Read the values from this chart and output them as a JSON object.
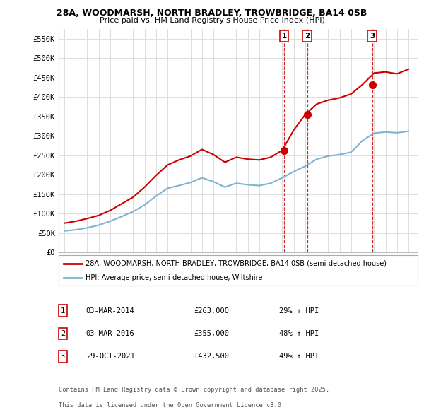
{
  "title_line1": "28A, WOODMARSH, NORTH BRADLEY, TROWBRIDGE, BA14 0SB",
  "title_line2": "Price paid vs. HM Land Registry's House Price Index (HPI)",
  "background_color": "#ffffff",
  "plot_bg_color": "#ffffff",
  "grid_color": "#dddddd",
  "ylim": [
    0,
    575000
  ],
  "yticks": [
    0,
    50000,
    100000,
    150000,
    200000,
    250000,
    300000,
    350000,
    400000,
    450000,
    500000,
    550000
  ],
  "ytick_labels": [
    "£0",
    "£50K",
    "£100K",
    "£150K",
    "£200K",
    "£250K",
    "£300K",
    "£350K",
    "£400K",
    "£450K",
    "£500K",
    "£550K"
  ],
  "sale_color": "#cc0000",
  "hpi_color": "#7fb3d3",
  "vline_color": "#cc0000",
  "purchases": [
    {
      "date_num": 2014.163,
      "price": 263000,
      "label": "1"
    },
    {
      "date_num": 2016.163,
      "price": 355000,
      "label": "2"
    },
    {
      "date_num": 2021.829,
      "price": 432500,
      "label": "3"
    }
  ],
  "legend_sale_label": "28A, WOODMARSH, NORTH BRADLEY, TROWBRIDGE, BA14 0SB (semi-detached house)",
  "legend_hpi_label": "HPI: Average price, semi-detached house, Wiltshire",
  "footer_line1": "Contains HM Land Registry data © Crown copyright and database right 2025.",
  "footer_line2": "This data is licensed under the Open Government Licence v3.0.",
  "table_entries": [
    {
      "num": "1",
      "date": "03-MAR-2014",
      "price": "£263,000",
      "change": "29% ↑ HPI"
    },
    {
      "num": "2",
      "date": "03-MAR-2016",
      "price": "£355,000",
      "change": "48% ↑ HPI"
    },
    {
      "num": "3",
      "date": "29-OCT-2021",
      "price": "£432,500",
      "change": "49% ↑ HPI"
    }
  ],
  "hpi_data": {
    "years": [
      1995,
      1996,
      1997,
      1998,
      1999,
      2000,
      2001,
      2002,
      2003,
      2004,
      2005,
      2006,
      2007,
      2008,
      2009,
      2010,
      2011,
      2012,
      2013,
      2014,
      2015,
      2016,
      2017,
      2018,
      2019,
      2020,
      2021,
      2022,
      2023,
      2024,
      2025
    ],
    "values": [
      55000,
      58000,
      63000,
      70000,
      80000,
      92000,
      105000,
      122000,
      145000,
      165000,
      172000,
      180000,
      192000,
      182000,
      168000,
      178000,
      174000,
      172000,
      178000,
      192000,
      208000,
      222000,
      240000,
      248000,
      252000,
      258000,
      288000,
      307000,
      310000,
      308000,
      312000
    ]
  },
  "sale_data": {
    "years": [
      1995,
      1996,
      1997,
      1998,
      1999,
      2000,
      2001,
      2002,
      2003,
      2004,
      2005,
      2006,
      2007,
      2008,
      2009,
      2010,
      2011,
      2012,
      2013,
      2014,
      2015,
      2016,
      2017,
      2018,
      2019,
      2020,
      2021,
      2022,
      2023,
      2024,
      2025
    ],
    "values": [
      75000,
      80000,
      87000,
      95000,
      108000,
      125000,
      142000,
      168000,
      198000,
      225000,
      238000,
      248000,
      265000,
      252000,
      232000,
      245000,
      240000,
      238000,
      245000,
      263000,
      315000,
      355000,
      382000,
      392000,
      398000,
      408000,
      432500,
      462000,
      465000,
      460000,
      472000
    ]
  },
  "xlim": [
    1994.5,
    2025.8
  ],
  "xticks": [
    1995,
    1996,
    1997,
    1998,
    1999,
    2000,
    2001,
    2002,
    2003,
    2004,
    2005,
    2006,
    2007,
    2008,
    2009,
    2010,
    2011,
    2012,
    2013,
    2014,
    2015,
    2016,
    2017,
    2018,
    2019,
    2020,
    2021,
    2022,
    2023,
    2024,
    2025
  ]
}
